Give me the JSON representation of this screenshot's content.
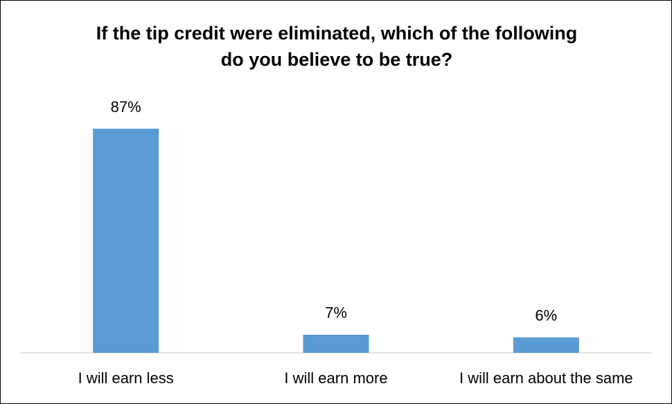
{
  "chart_data": {
    "type": "bar",
    "title": "If the tip credit were eliminated, which of the following do you believe to be true?",
    "categories": [
      "I will earn less",
      "I will earn more",
      "I will earn about the same"
    ],
    "values": [
      87,
      7,
      6
    ],
    "value_labels": [
      "87%",
      "7%",
      "6%"
    ],
    "color": "#5b9bd5"
  }
}
